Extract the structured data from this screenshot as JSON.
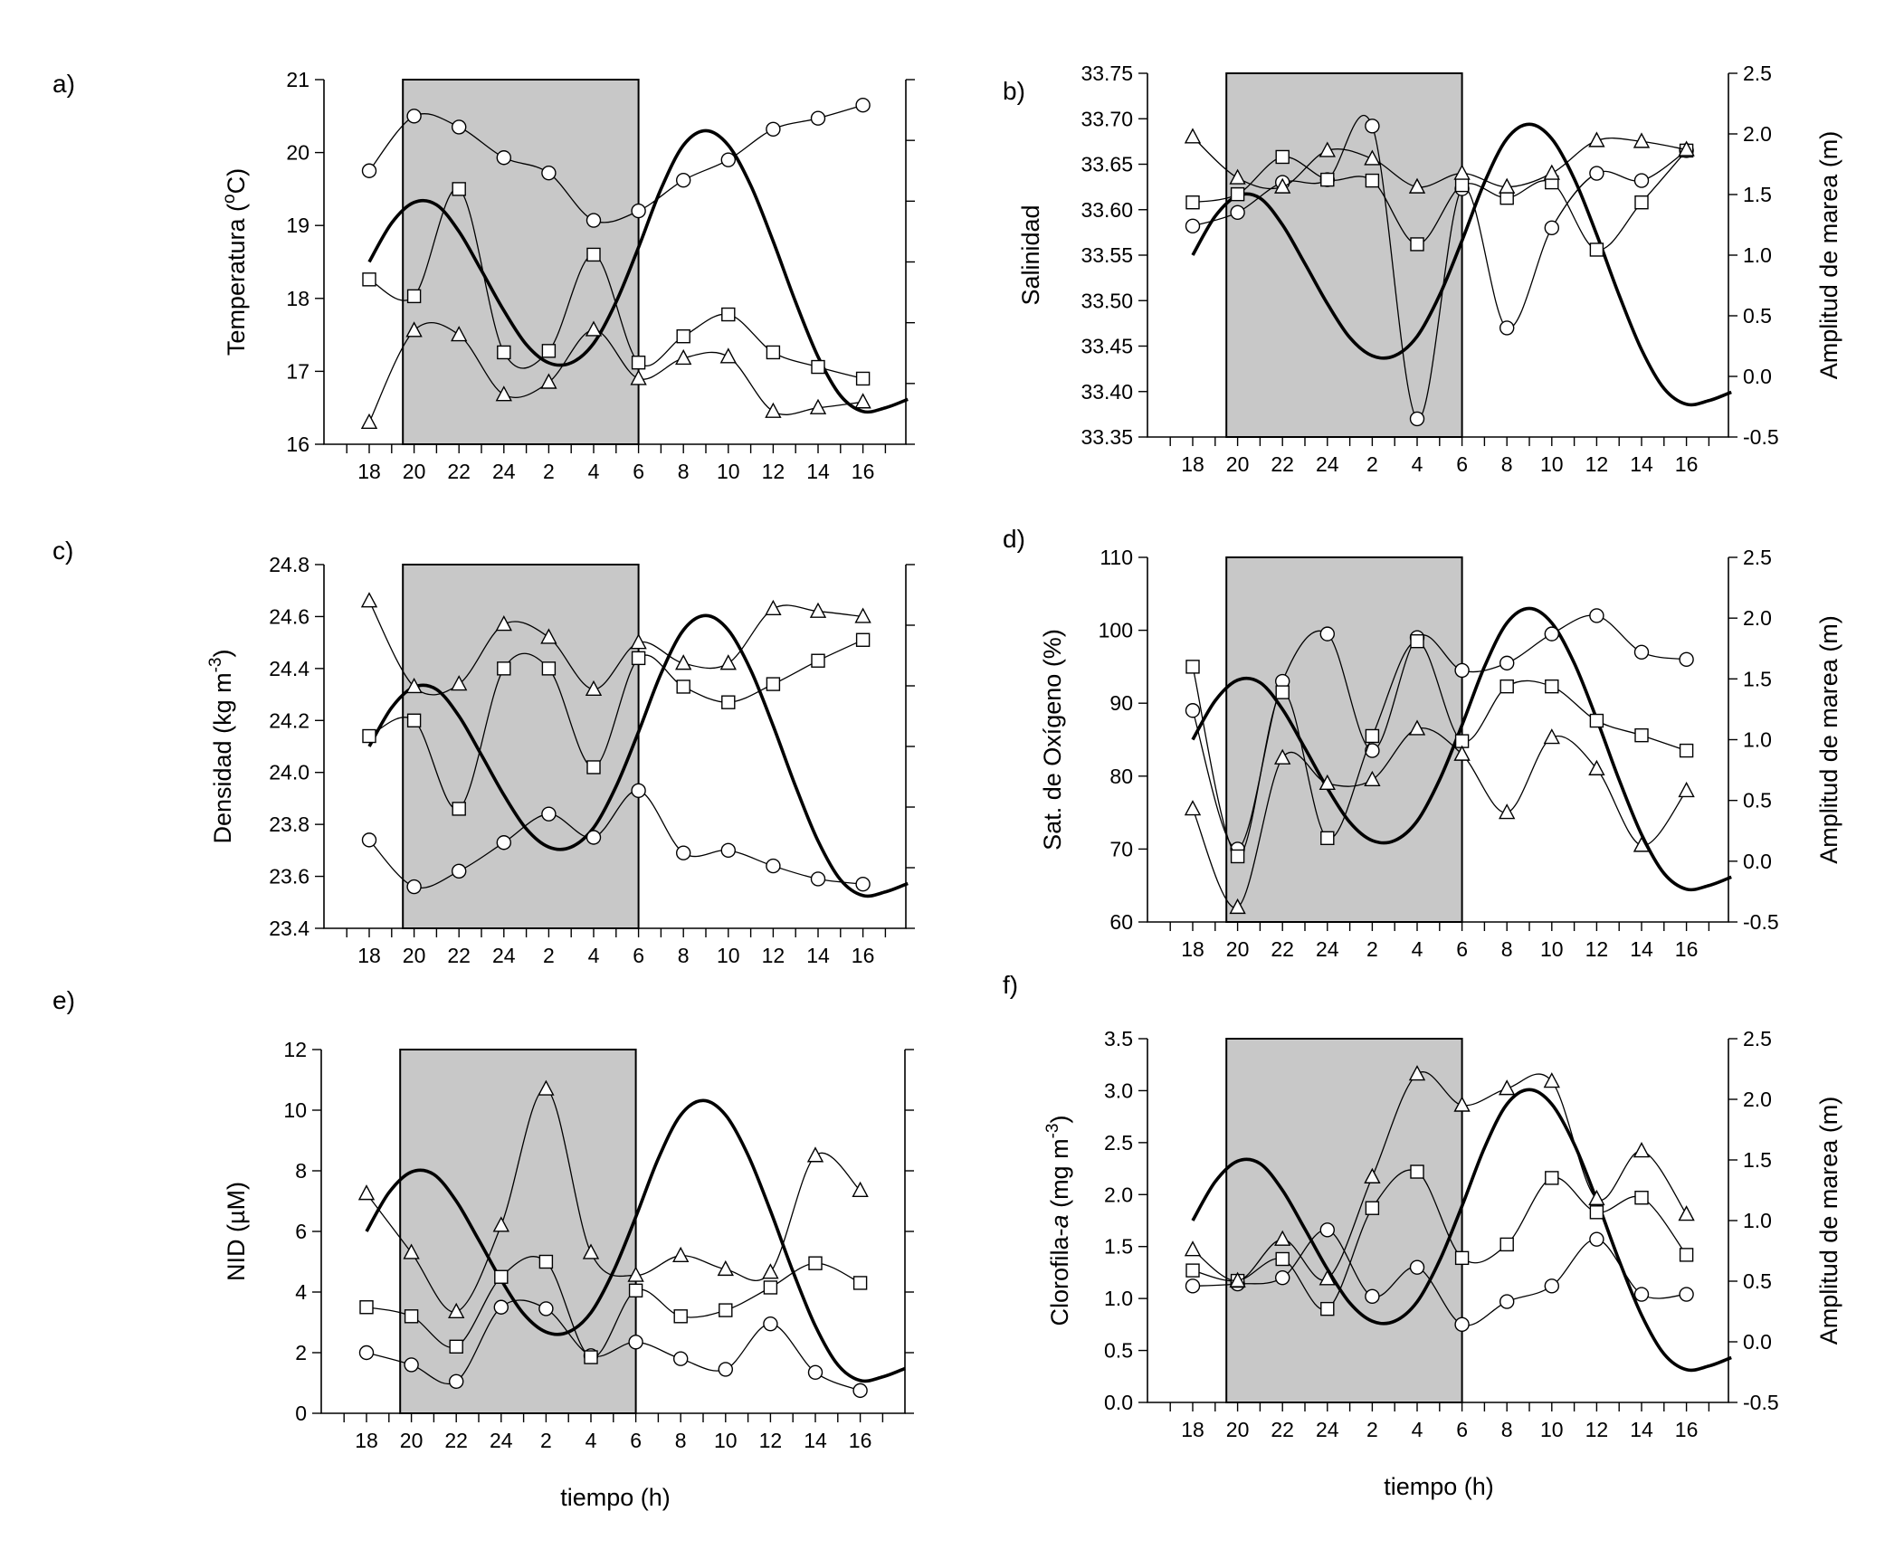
{
  "figure": {
    "time_label": "tiempo (h)",
    "tide_label": "Amplitud de marea (m)",
    "time_ticks": [
      "18",
      "20",
      "22",
      "24",
      "2",
      "4",
      "6",
      "8",
      "10",
      "12",
      "14",
      "16"
    ],
    "tide_ticks": [
      "-0.5",
      "0.0",
      "0.5",
      "1.0",
      "1.5",
      "2.0",
      "2.5"
    ],
    "night_shading": {
      "from_hour_index": 0.75,
      "to_hour_index": 6.0
    },
    "tide_curve": {
      "hour_index": [
        0,
        0.5,
        1,
        1.5,
        2,
        2.5,
        3,
        3.5,
        4,
        4.5,
        5,
        5.5,
        6,
        6.5,
        7,
        7.5,
        8,
        8.5,
        9,
        9.5,
        10,
        10.5,
        11,
        11.5,
        12
      ],
      "amplitude_m": [
        1.0,
        1.32,
        1.49,
        1.47,
        1.25,
        0.93,
        0.6,
        0.32,
        0.17,
        0.17,
        0.33,
        0.67,
        1.12,
        1.6,
        1.96,
        2.08,
        1.96,
        1.63,
        1.17,
        0.67,
        0.22,
        -0.1,
        -0.23,
        -0.2,
        -0.13
      ]
    }
  },
  "chart_data": [
    {
      "type": "line",
      "panel": "a)",
      "ylabel": "Temperatura (°C)",
      "ylim": [
        16,
        21
      ],
      "yticks": [
        "16",
        "17",
        "18",
        "19",
        "20",
        "21"
      ],
      "has_tide_axis": false,
      "categories": [
        "18",
        "20",
        "22",
        "24",
        "2",
        "4",
        "6",
        "8",
        "10",
        "12",
        "14",
        "16"
      ],
      "series": [
        {
          "name": "circles",
          "marker": "circle",
          "values": [
            19.75,
            20.5,
            20.35,
            19.93,
            19.72,
            19.07,
            19.2,
            19.62,
            19.9,
            20.32,
            20.47,
            20.65
          ]
        },
        {
          "name": "squares",
          "marker": "square",
          "values": [
            18.26,
            18.03,
            19.5,
            17.26,
            17.28,
            18.6,
            17.12,
            17.48,
            17.78,
            17.26,
            17.06,
            16.9
          ]
        },
        {
          "name": "triangles",
          "marker": "triangle",
          "values": [
            16.3,
            17.56,
            17.5,
            16.68,
            16.85,
            17.57,
            16.9,
            17.18,
            17.2,
            16.45,
            16.5,
            16.58
          ]
        }
      ]
    },
    {
      "type": "line",
      "panel": "b)",
      "ylabel": "Salinidad",
      "ylim": [
        33.35,
        33.75
      ],
      "yticks": [
        "33.35",
        "33.40",
        "33.45",
        "33.50",
        "33.55",
        "33.60",
        "33.65",
        "33.70",
        "33.75"
      ],
      "has_tide_axis": true,
      "categories": [
        "18",
        "20",
        "22",
        "24",
        "2",
        "4",
        "6",
        "8",
        "10",
        "12",
        "14",
        "16"
      ],
      "series": [
        {
          "name": "circles",
          "marker": "circle",
          "values": [
            33.582,
            33.597,
            33.63,
            33.633,
            33.692,
            33.37,
            33.623,
            33.47,
            33.58,
            33.64,
            33.632,
            33.665
          ]
        },
        {
          "name": "squares",
          "marker": "square",
          "values": [
            33.608,
            33.617,
            33.658,
            33.633,
            33.632,
            33.562,
            33.627,
            33.613,
            33.63,
            33.556,
            33.608,
            33.665
          ]
        },
        {
          "name": "triangles",
          "marker": "triangle",
          "values": [
            33.68,
            33.635,
            33.625,
            33.665,
            33.656,
            33.625,
            33.64,
            33.625,
            33.64,
            33.676,
            33.675,
            33.666
          ]
        }
      ]
    },
    {
      "type": "line",
      "panel": "c)",
      "ylabel": "Densidad (kg m-3)",
      "ylim": [
        23.4,
        24.8
      ],
      "yticks": [
        "23.4",
        "23.6",
        "23.8",
        "24.0",
        "24.2",
        "24.4",
        "24.6",
        "24.8"
      ],
      "has_tide_axis": false,
      "categories": [
        "18",
        "20",
        "22",
        "24",
        "2",
        "4",
        "6",
        "8",
        "10",
        "12",
        "14",
        "16"
      ],
      "series": [
        {
          "name": "circles",
          "marker": "circle",
          "values": [
            23.74,
            23.56,
            23.62,
            23.73,
            23.84,
            23.75,
            23.93,
            23.69,
            23.7,
            23.64,
            23.59,
            23.57
          ]
        },
        {
          "name": "squares",
          "marker": "square",
          "values": [
            24.14,
            24.2,
            23.86,
            24.4,
            24.4,
            24.02,
            24.44,
            24.33,
            24.27,
            24.34,
            24.43,
            24.51
          ]
        },
        {
          "name": "triangles",
          "marker": "triangle",
          "values": [
            24.66,
            24.33,
            24.34,
            24.57,
            24.52,
            24.32,
            24.5,
            24.42,
            24.42,
            24.63,
            24.62,
            24.6
          ]
        }
      ]
    },
    {
      "type": "line",
      "panel": "d)",
      "ylabel": "Sat. de Oxígeno (%)",
      "ylim": [
        60,
        110
      ],
      "yticks": [
        "60",
        "70",
        "80",
        "90",
        "100",
        "110"
      ],
      "has_tide_axis": true,
      "categories": [
        "18",
        "20",
        "22",
        "24",
        "2",
        "4",
        "6",
        "8",
        "10",
        "12",
        "14",
        "16"
      ],
      "series": [
        {
          "name": "circles",
          "marker": "circle",
          "values": [
            89,
            70,
            93,
            99.5,
            83.5,
            99,
            94.5,
            95.5,
            99.5,
            102,
            97,
            96
          ]
        },
        {
          "name": "squares",
          "marker": "square",
          "values": [
            95,
            69,
            91.5,
            71.5,
            85.5,
            98.5,
            84.8,
            92.3,
            92.3,
            87.6,
            85.6,
            83.5
          ]
        },
        {
          "name": "triangles",
          "marker": "triangle",
          "values": [
            75.5,
            62,
            82.5,
            79,
            79.5,
            86.5,
            83,
            75,
            85.3,
            81,
            70.5,
            78
          ]
        }
      ]
    },
    {
      "type": "line",
      "panel": "e)",
      "ylabel": "NID (µM)",
      "ylim": [
        0,
        12
      ],
      "yticks": [
        "0",
        "2",
        "4",
        "6",
        "8",
        "10",
        "12"
      ],
      "has_tide_axis": false,
      "categories": [
        "18",
        "20",
        "22",
        "24",
        "2",
        "4",
        "6",
        "8",
        "10",
        "12",
        "14",
        "16"
      ],
      "series": [
        {
          "name": "circles",
          "marker": "circle",
          "values": [
            2.0,
            1.6,
            1.05,
            3.5,
            3.45,
            1.9,
            2.35,
            1.8,
            1.45,
            2.95,
            1.35,
            0.75
          ]
        },
        {
          "name": "squares",
          "marker": "square",
          "values": [
            3.5,
            3.2,
            2.2,
            4.5,
            5.0,
            1.85,
            4.05,
            3.2,
            3.4,
            4.15,
            4.95,
            4.3
          ]
        },
        {
          "name": "triangles",
          "marker": "triangle",
          "values": [
            7.25,
            5.3,
            3.35,
            6.2,
            10.7,
            5.3,
            4.55,
            5.2,
            4.75,
            4.65,
            8.5,
            7.35
          ]
        }
      ]
    },
    {
      "type": "line",
      "panel": "f)",
      "ylabel": "Clorofila-a (mg m-3)",
      "ylim": [
        0.0,
        3.5
      ],
      "yticks": [
        "0.0",
        "0.5",
        "1.0",
        "1.5",
        "2.0",
        "2.5",
        "3.0",
        "3.5"
      ],
      "has_tide_axis": true,
      "categories": [
        "18",
        "20",
        "22",
        "24",
        "2",
        "4",
        "6",
        "8",
        "10",
        "12",
        "14",
        "16"
      ],
      "series": [
        {
          "name": "circles",
          "marker": "circle",
          "values": [
            1.12,
            1.14,
            1.2,
            1.66,
            1.02,
            1.3,
            0.75,
            0.97,
            1.12,
            1.57,
            1.04,
            1.04
          ]
        },
        {
          "name": "squares",
          "marker": "square",
          "values": [
            1.27,
            1.17,
            1.38,
            0.9,
            1.87,
            2.22,
            1.39,
            1.52,
            2.16,
            1.83,
            1.97,
            1.42
          ]
        },
        {
          "name": "triangles",
          "marker": "triangle",
          "values": [
            1.47,
            1.17,
            1.57,
            1.19,
            2.17,
            3.16,
            2.86,
            3.02,
            3.09,
            1.96,
            2.42,
            1.81
          ]
        }
      ]
    }
  ]
}
